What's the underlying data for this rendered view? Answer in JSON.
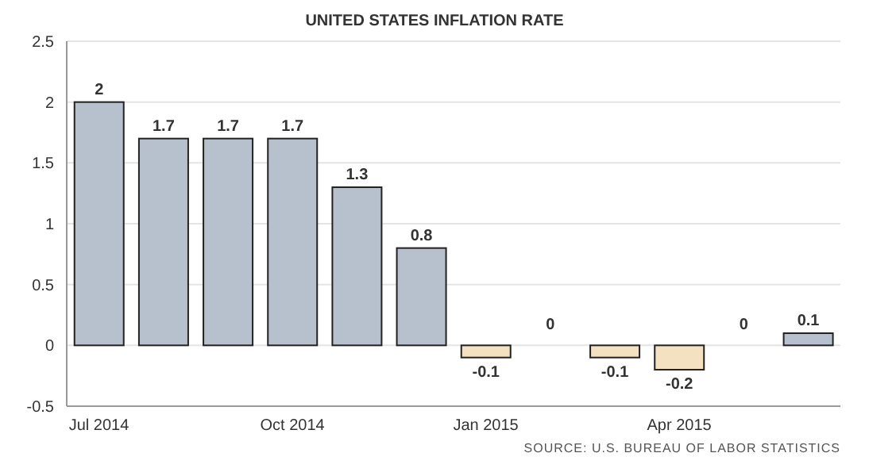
{
  "chart_data": {
    "type": "bar",
    "title": "UNITED STATES INFLATION RATE",
    "categories": [
      "Jul 2014",
      null,
      null,
      "Oct 2014",
      null,
      null,
      "Jan 2015",
      null,
      null,
      "Apr 2015",
      null,
      null
    ],
    "values": [
      2,
      1.7,
      1.7,
      1.7,
      1.3,
      0.8,
      -0.1,
      0,
      -0.1,
      -0.2,
      0,
      0.1
    ],
    "colors": [
      "#b7c1cd",
      "#b7c1cd",
      "#b7c1cd",
      "#b7c1cd",
      "#b7c1cd",
      "#b7c1cd",
      "#f3e1c2",
      "#b7c1cd",
      "#f3e1c2",
      "#f3e1c2",
      "#b7c1cd",
      "#b7c1cd"
    ],
    "ylim": [
      -0.5,
      2.5
    ],
    "yticks": [
      -0.5,
      0,
      0.5,
      1,
      1.5,
      2,
      2.5
    ],
    "grid": "y",
    "data_labels": true,
    "annotations": [
      "SOURCE: U.S. BUREAU OF LABOR STATISTICS"
    ]
  }
}
